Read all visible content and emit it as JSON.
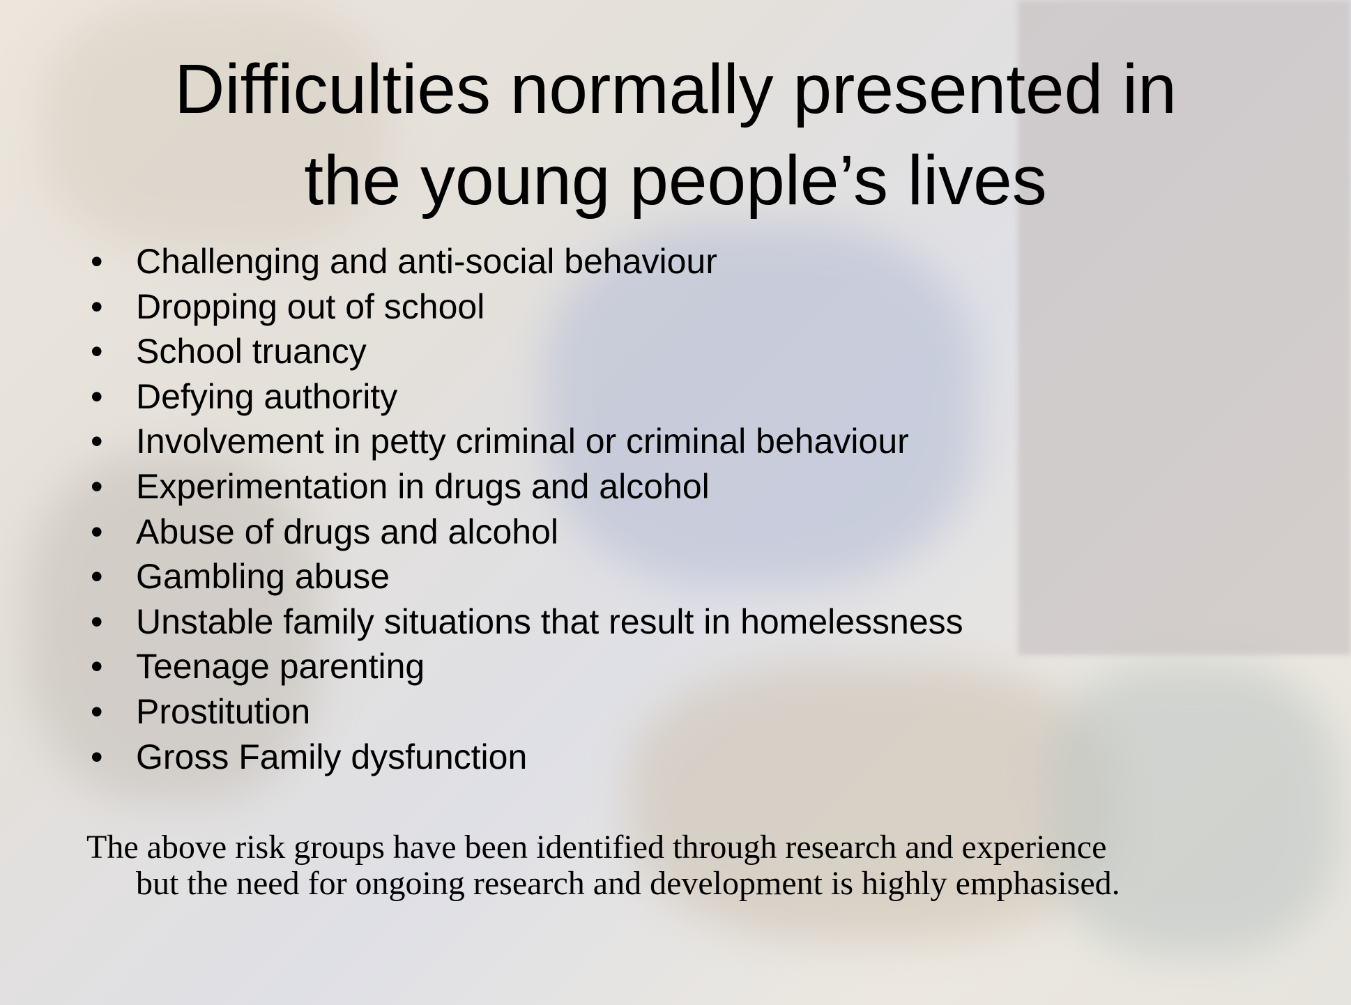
{
  "title_lines": [
    "Difficulties normally presented in",
    "the young people’s lives"
  ],
  "bullets": [
    "Challenging and anti-social behaviour",
    "Dropping out of school",
    "School truancy",
    "Defying authority",
    "Involvement in petty criminal or criminal behaviour",
    "Experimentation in drugs and alcohol",
    "Abuse of drugs and alcohol",
    "Gambling abuse",
    "Unstable family situations that result in homelessness",
    "Teenage parenting",
    "Prostitution",
    "Gross Family dysfunction"
  ],
  "footer_lines": [
    "The above risk groups have been identified through research and experience",
    "but the need for ongoing research and development is highly emphasised."
  ]
}
